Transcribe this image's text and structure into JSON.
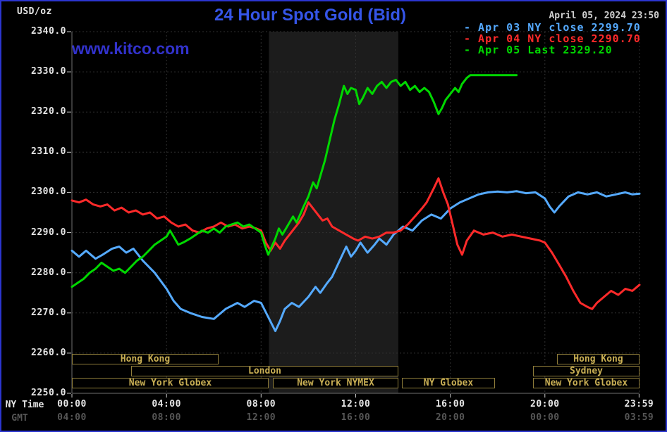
{
  "header": {
    "units_label": "USD/oz",
    "title": "24 Hour Spot Gold (Bid)",
    "timestamp": "April 05, 2024 23:50",
    "watermark": "www.kitco.com"
  },
  "legend": {
    "items": [
      {
        "label": "- Apr 03 NY close 2299.70",
        "color": "#55aaff"
      },
      {
        "label": "- Apr 04 NY close 2290.70",
        "color": "#ff2a2a"
      },
      {
        "label": "- Apr 05 Last 2329.20",
        "color": "#00d800"
      }
    ]
  },
  "axes": {
    "ny_time_label": "NY Time",
    "gmt_label": "GMT",
    "y_ticks": [
      {
        "label": "2340.0",
        "value": 2340
      },
      {
        "label": "2330.0",
        "value": 2330
      },
      {
        "label": "2320.0",
        "value": 2320
      },
      {
        "label": "2310.0",
        "value": 2310
      },
      {
        "label": "2300.0",
        "value": 2300
      },
      {
        "label": "2290.0",
        "value": 2290
      },
      {
        "label": "2280.0",
        "value": 2280
      },
      {
        "label": "2270.0",
        "value": 2270
      },
      {
        "label": "2260.0",
        "value": 2260
      },
      {
        "label": "2250.0",
        "value": 2250
      }
    ],
    "ny_ticks": [
      {
        "label": "00:00",
        "hour": 0
      },
      {
        "label": "04:00",
        "hour": 4
      },
      {
        "label": "08:00",
        "hour": 8
      },
      {
        "label": "12:00",
        "hour": 12
      },
      {
        "label": "16:00",
        "hour": 16
      },
      {
        "label": "20:00",
        "hour": 20
      },
      {
        "label": "23:59",
        "hour": 23.983
      }
    ],
    "gmt_ticks": [
      {
        "label": "04:00",
        "hour": 0
      },
      {
        "label": "08:00",
        "hour": 4
      },
      {
        "label": "12:00",
        "hour": 8
      },
      {
        "label": "16:00",
        "hour": 12
      },
      {
        "label": "20:00",
        "hour": 16
      },
      {
        "label": "00:00",
        "hour": 20
      },
      {
        "label": "03:59",
        "hour": 23.983
      }
    ]
  },
  "sessions": {
    "rows": [
      [
        {
          "label": "Hong Kong",
          "start": 0,
          "end": 6.2
        },
        {
          "label": "Hong Kong",
          "start": 20.5,
          "end": 24
        }
      ],
      [
        {
          "label": "London",
          "start": 2.5,
          "end": 13.8
        },
        {
          "label": "Sydney",
          "start": 19.5,
          "end": 24
        }
      ],
      [
        {
          "label": "New York Globex",
          "start": 0,
          "end": 8.33
        },
        {
          "label": "New York NYMEX",
          "start": 8.5,
          "end": 13.8
        },
        {
          "label": "NY Globex",
          "start": 13.95,
          "end": 17.9
        },
        {
          "label": "New York Globex",
          "start": 19.5,
          "end": 24
        }
      ]
    ]
  },
  "chart_data": {
    "type": "line",
    "title": "24 Hour Spot Gold (Bid)",
    "xlabel": "NY Time",
    "ylabel": "USD/oz",
    "xlim": [
      0,
      24
    ],
    "ylim": [
      2250,
      2340
    ],
    "ygrid": [
      2260,
      2270,
      2280,
      2290,
      2300,
      2310,
      2320,
      2330,
      2340
    ],
    "xgrid": [
      4,
      8,
      12,
      16,
      20,
      24
    ],
    "grid": true,
    "legend_position": "top-right",
    "band": {
      "start": 8.33,
      "end": 13.8,
      "color": "#1c1c1c"
    },
    "series": [
      {
        "id": "apr03",
        "name": "Apr 03 NY close 2299.70",
        "color": "#55aaff",
        "points": [
          [
            0,
            2285.5
          ],
          [
            0.3,
            2284
          ],
          [
            0.6,
            2285.5
          ],
          [
            1,
            2283.5
          ],
          [
            1.3,
            2284.5
          ],
          [
            1.7,
            2286
          ],
          [
            2,
            2286.5
          ],
          [
            2.3,
            2285
          ],
          [
            2.6,
            2286
          ],
          [
            3,
            2283
          ],
          [
            3.5,
            2280
          ],
          [
            4,
            2276
          ],
          [
            4.3,
            2273
          ],
          [
            4.6,
            2271
          ],
          [
            5,
            2270
          ],
          [
            5.5,
            2269
          ],
          [
            6,
            2268.5
          ],
          [
            6.5,
            2271
          ],
          [
            7,
            2272.5
          ],
          [
            7.3,
            2271.5
          ],
          [
            7.7,
            2273
          ],
          [
            8,
            2272.5
          ],
          [
            8.3,
            2269
          ],
          [
            8.6,
            2265.5
          ],
          [
            8.8,
            2268
          ],
          [
            9,
            2271
          ],
          [
            9.3,
            2272.5
          ],
          [
            9.6,
            2271.5
          ],
          [
            10,
            2274
          ],
          [
            10.3,
            2276.5
          ],
          [
            10.5,
            2275
          ],
          [
            10.8,
            2277.5
          ],
          [
            11,
            2279
          ],
          [
            11.2,
            2281.5
          ],
          [
            11.4,
            2284
          ],
          [
            11.6,
            2286.5
          ],
          [
            11.8,
            2284
          ],
          [
            12,
            2285.5
          ],
          [
            12.2,
            2287.5
          ],
          [
            12.5,
            2285
          ],
          [
            12.8,
            2287
          ],
          [
            13,
            2288.5
          ],
          [
            13.3,
            2287
          ],
          [
            13.6,
            2289.5
          ],
          [
            14,
            2291.5
          ],
          [
            14.4,
            2290.5
          ],
          [
            14.8,
            2293
          ],
          [
            15.2,
            2294.5
          ],
          [
            15.6,
            2293.5
          ],
          [
            16,
            2296
          ],
          [
            16.4,
            2297.5
          ],
          [
            16.8,
            2298.5
          ],
          [
            17.2,
            2299.5
          ],
          [
            17.6,
            2300
          ],
          [
            18,
            2300.2
          ],
          [
            18.4,
            2300
          ],
          [
            18.8,
            2300.3
          ],
          [
            19.2,
            2299.8
          ],
          [
            19.6,
            2300
          ],
          [
            20,
            2298.5
          ],
          [
            20.2,
            2296.5
          ],
          [
            20.4,
            2295
          ],
          [
            20.6,
            2296.5
          ],
          [
            21,
            2299
          ],
          [
            21.4,
            2300
          ],
          [
            21.8,
            2299.5
          ],
          [
            22.2,
            2300
          ],
          [
            22.6,
            2299
          ],
          [
            23,
            2299.5
          ],
          [
            23.4,
            2300
          ],
          [
            23.7,
            2299.5
          ],
          [
            24,
            2299.7
          ]
        ]
      },
      {
        "id": "apr04",
        "name": "Apr 04 NY close 2290.70",
        "color": "#ff2a2a",
        "points": [
          [
            0,
            2298
          ],
          [
            0.3,
            2297.5
          ],
          [
            0.6,
            2298.2
          ],
          [
            0.9,
            2297
          ],
          [
            1.2,
            2296.5
          ],
          [
            1.5,
            2297
          ],
          [
            1.8,
            2295.5
          ],
          [
            2.1,
            2296.2
          ],
          [
            2.4,
            2295
          ],
          [
            2.7,
            2295.5
          ],
          [
            3,
            2294.5
          ],
          [
            3.3,
            2295
          ],
          [
            3.6,
            2293.5
          ],
          [
            3.9,
            2294
          ],
          [
            4.2,
            2292.5
          ],
          [
            4.5,
            2291.5
          ],
          [
            4.8,
            2292
          ],
          [
            5.1,
            2290.5
          ],
          [
            5.4,
            2290
          ],
          [
            5.7,
            2291
          ],
          [
            6,
            2291.5
          ],
          [
            6.3,
            2292.5
          ],
          [
            6.6,
            2291.5
          ],
          [
            6.9,
            2292
          ],
          [
            7.2,
            2291
          ],
          [
            7.5,
            2291.5
          ],
          [
            7.8,
            2291
          ],
          [
            8,
            2290.5
          ],
          [
            8.2,
            2287.5
          ],
          [
            8.4,
            2285.5
          ],
          [
            8.6,
            2287.5
          ],
          [
            8.8,
            2286
          ],
          [
            9,
            2288
          ],
          [
            9.2,
            2289.5
          ],
          [
            9.4,
            2291
          ],
          [
            9.6,
            2292.5
          ],
          [
            9.8,
            2294.5
          ],
          [
            10,
            2297.5
          ],
          [
            10.2,
            2296
          ],
          [
            10.4,
            2294.5
          ],
          [
            10.6,
            2293
          ],
          [
            10.8,
            2293.5
          ],
          [
            11,
            2291.5
          ],
          [
            11.3,
            2290.5
          ],
          [
            11.6,
            2289.5
          ],
          [
            11.9,
            2288.5
          ],
          [
            12.1,
            2288
          ],
          [
            12.4,
            2289
          ],
          [
            12.7,
            2288.5
          ],
          [
            13,
            2289
          ],
          [
            13.3,
            2290
          ],
          [
            13.6,
            2290
          ],
          [
            13.9,
            2290.5
          ],
          [
            14.2,
            2292
          ],
          [
            14.5,
            2294
          ],
          [
            14.8,
            2296
          ],
          [
            15,
            2297.5
          ],
          [
            15.3,
            2301
          ],
          [
            15.5,
            2303.5
          ],
          [
            15.7,
            2300
          ],
          [
            15.9,
            2297
          ],
          [
            16.1,
            2292
          ],
          [
            16.3,
            2287
          ],
          [
            16.5,
            2284.5
          ],
          [
            16.7,
            2288
          ],
          [
            17,
            2290.5
          ],
          [
            17.4,
            2289.5
          ],
          [
            17.8,
            2290
          ],
          [
            18.2,
            2289
          ],
          [
            18.6,
            2289.5
          ],
          [
            19,
            2289
          ],
          [
            19.4,
            2288.5
          ],
          [
            19.8,
            2288
          ],
          [
            20,
            2287.5
          ],
          [
            20.3,
            2285
          ],
          [
            20.6,
            2282
          ],
          [
            20.9,
            2279
          ],
          [
            21.2,
            2275.5
          ],
          [
            21.5,
            2272.5
          ],
          [
            21.8,
            2271.5
          ],
          [
            22,
            2271
          ],
          [
            22.2,
            2272.5
          ],
          [
            22.5,
            2274
          ],
          [
            22.8,
            2275.5
          ],
          [
            23.1,
            2274.5
          ],
          [
            23.4,
            2276
          ],
          [
            23.7,
            2275.5
          ],
          [
            24,
            2277
          ]
        ]
      },
      {
        "id": "apr05",
        "name": "Apr 05 Last 2329.20",
        "color": "#00d800",
        "points": [
          [
            0,
            2276.5
          ],
          [
            0.25,
            2277.5
          ],
          [
            0.5,
            2278.5
          ],
          [
            0.75,
            2280
          ],
          [
            1,
            2281
          ],
          [
            1.25,
            2282.5
          ],
          [
            1.5,
            2281.5
          ],
          [
            1.75,
            2280.5
          ],
          [
            2,
            2281
          ],
          [
            2.25,
            2280
          ],
          [
            2.5,
            2281.5
          ],
          [
            2.75,
            2283
          ],
          [
            3,
            2284
          ],
          [
            3.25,
            2285.5
          ],
          [
            3.5,
            2287
          ],
          [
            3.75,
            2288
          ],
          [
            4,
            2289
          ],
          [
            4.15,
            2290.5
          ],
          [
            4.3,
            2289
          ],
          [
            4.5,
            2287
          ],
          [
            4.7,
            2287.5
          ],
          [
            5,
            2288.5
          ],
          [
            5.25,
            2289.5
          ],
          [
            5.5,
            2290.5
          ],
          [
            5.75,
            2290
          ],
          [
            6,
            2291
          ],
          [
            6.25,
            2290
          ],
          [
            6.5,
            2291.5
          ],
          [
            6.75,
            2292
          ],
          [
            7,
            2292.5
          ],
          [
            7.25,
            2291.5
          ],
          [
            7.5,
            2292
          ],
          [
            7.75,
            2291
          ],
          [
            8,
            2290
          ],
          [
            8.15,
            2287
          ],
          [
            8.3,
            2284.5
          ],
          [
            8.45,
            2286.5
          ],
          [
            8.6,
            2288.5
          ],
          [
            8.75,
            2291
          ],
          [
            8.9,
            2289.5
          ],
          [
            9.05,
            2291
          ],
          [
            9.2,
            2292.5
          ],
          [
            9.35,
            2294
          ],
          [
            9.5,
            2292.5
          ],
          [
            9.65,
            2294.5
          ],
          [
            9.8,
            2296.5
          ],
          [
            10,
            2299
          ],
          [
            10.2,
            2302.5
          ],
          [
            10.35,
            2301
          ],
          [
            10.5,
            2304
          ],
          [
            10.7,
            2308
          ],
          [
            10.9,
            2313
          ],
          [
            11.1,
            2318
          ],
          [
            11.3,
            2322
          ],
          [
            11.5,
            2326.5
          ],
          [
            11.65,
            2324.5
          ],
          [
            11.8,
            2326
          ],
          [
            12,
            2325.5
          ],
          [
            12.15,
            2322
          ],
          [
            12.3,
            2323.5
          ],
          [
            12.5,
            2326
          ],
          [
            12.7,
            2324.5
          ],
          [
            12.9,
            2326.5
          ],
          [
            13.1,
            2327.5
          ],
          [
            13.3,
            2326
          ],
          [
            13.5,
            2327.5
          ],
          [
            13.7,
            2328
          ],
          [
            13.9,
            2326.5
          ],
          [
            14.1,
            2327.5
          ],
          [
            14.3,
            2325.5
          ],
          [
            14.5,
            2326.5
          ],
          [
            14.7,
            2325
          ],
          [
            14.9,
            2326
          ],
          [
            15.1,
            2325
          ],
          [
            15.3,
            2322.5
          ],
          [
            15.5,
            2319.5
          ],
          [
            15.65,
            2321
          ],
          [
            15.8,
            2323
          ],
          [
            16,
            2324.5
          ],
          [
            16.2,
            2326
          ],
          [
            16.35,
            2325
          ],
          [
            16.5,
            2327
          ],
          [
            16.7,
            2328.5
          ],
          [
            16.85,
            2329.2
          ],
          [
            18.8,
            2329.2
          ]
        ]
      }
    ]
  }
}
